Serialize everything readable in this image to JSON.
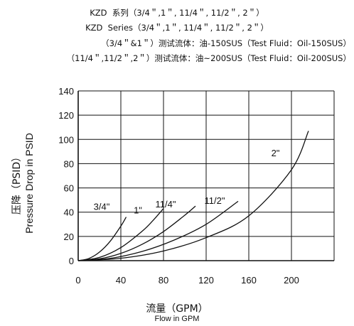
{
  "header": {
    "line1": "KZD  系列（3/4＂,1＂, 11/4＂, 11/2＂, 2＂）",
    "line2": "KZD  Series（3/4＂,1＂, 11/4＂, 11/2＂, 2＂）",
    "line3": "（3/4＂&1＂）测试流体：油-150SUS（Test Fluid：Oil-150SUS）",
    "line4": "（11/4＂,11/2＂,2＂）测试流体：油~200SUS（Test Fluid：Oil-200SUS）"
  },
  "chart_data": {
    "type": "line",
    "ylabel_cn": "压降（PSID）",
    "ylabel_en": "Pressure Drop in PSID",
    "xlabel_cn": "流量（GPM）",
    "xlabel_en": "Flow in GPM",
    "xlim": [
      0,
      240
    ],
    "ylim": [
      0,
      140
    ],
    "x_ticks": [
      0,
      40,
      80,
      120,
      160,
      200
    ],
    "y_ticks": [
      0,
      20,
      40,
      60,
      80,
      100,
      120,
      140
    ],
    "grid": true,
    "series": [
      {
        "name": "3/4\"",
        "label_at": [
          22,
          42
        ],
        "x": [
          0,
          10,
          20,
          30,
          40,
          45
        ],
        "y": [
          0,
          1.8,
          7.1,
          16,
          28.5,
          36
        ]
      },
      {
        "name": "1\"",
        "label_at": [
          56,
          39
        ],
        "x": [
          0,
          20,
          40,
          60,
          70,
          80
        ],
        "y": [
          0,
          2.7,
          10.8,
          24.3,
          33,
          43
        ]
      },
      {
        "name": "11/4\"",
        "label_at": [
          82,
          44
        ],
        "x": [
          0,
          20,
          40,
          60,
          80,
          100,
          110
        ],
        "y": [
          0,
          1.5,
          6,
          13.5,
          24,
          37.5,
          45
        ]
      },
      {
        "name": "11/2\"",
        "label_at": [
          128,
          47
        ],
        "x": [
          0,
          30,
          60,
          90,
          120,
          150
        ],
        "y": [
          0,
          1.9,
          7.6,
          17,
          30,
          49
        ]
      },
      {
        "name": "2\"",
        "label_at": [
          185,
          86
        ],
        "x": [
          0,
          40,
          80,
          120,
          160,
          200,
          216
        ],
        "y": [
          0,
          2,
          8,
          19,
          37,
          75,
          107
        ]
      }
    ]
  }
}
